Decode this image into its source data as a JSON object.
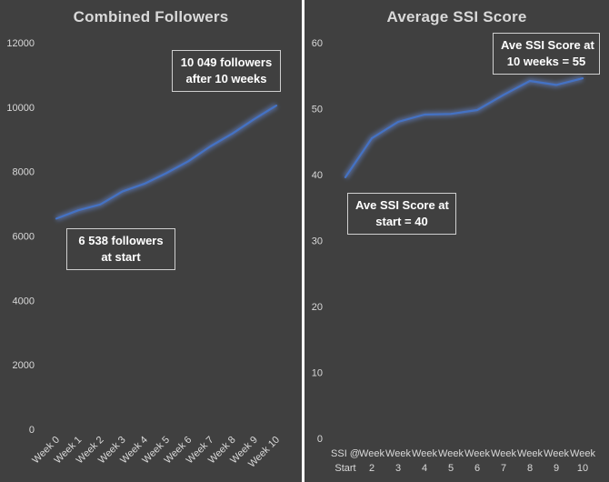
{
  "chart_data": [
    {
      "type": "line",
      "title": "Combined Followers",
      "categories": [
        "Week 0",
        "Week 1",
        "Week 2",
        "Week 3",
        "Week 4",
        "Week 5",
        "Week 6",
        "Week 7",
        "Week 8",
        "Week 9",
        "Week 10"
      ],
      "series": [
        {
          "values": [
            6538,
            6800,
            6980,
            7380,
            7620,
            7950,
            8320,
            8780,
            9180,
            9630,
            10049
          ]
        }
      ],
      "ylim": [
        0,
        12000
      ],
      "yticks": [
        "0",
        "2000",
        "4000",
        "6000",
        "8000",
        "10000",
        "12000"
      ],
      "annotations": [
        {
          "line1": "6 538 followers",
          "line2": "at start"
        },
        {
          "line1": "10 049 followers",
          "line2": "after 10 weeks"
        }
      ],
      "grid": false,
      "colors": {
        "background": "#404040",
        "line": "#4472c4",
        "text": "#d9d9d9"
      }
    },
    {
      "type": "line",
      "title": "Average SSI Score",
      "categories": [
        {
          "line1": "SSI @",
          "line2": "Start"
        },
        {
          "line1": "Week",
          "line2": "2"
        },
        {
          "line1": "Week",
          "line2": "3"
        },
        {
          "line1": "Week",
          "line2": "4"
        },
        {
          "line1": "Week",
          "line2": "5"
        },
        {
          "line1": "Week",
          "line2": "6"
        },
        {
          "line1": "Week",
          "line2": "7"
        },
        {
          "line1": "Week",
          "line2": "8"
        },
        {
          "line1": "Week",
          "line2": "9"
        },
        {
          "line1": "Week",
          "line2": "10"
        }
      ],
      "series": [
        {
          "values": [
            39.6,
            45.5,
            48.0,
            49.1,
            49.2,
            49.8,
            52.1,
            54.2,
            53.6,
            54.6
          ]
        }
      ],
      "ylim": [
        0,
        60
      ],
      "yticks": [
        "0",
        "10",
        "20",
        "30",
        "40",
        "50",
        "60"
      ],
      "annotations": [
        {
          "line1": "Ave SSI Score at",
          "line2": "start = 40"
        },
        {
          "line1": "Ave SSI Score at",
          "line2": "10 weeks = 55"
        }
      ],
      "grid": false,
      "colors": {
        "background": "#404040",
        "line": "#4472c4",
        "text": "#d9d9d9"
      }
    }
  ]
}
